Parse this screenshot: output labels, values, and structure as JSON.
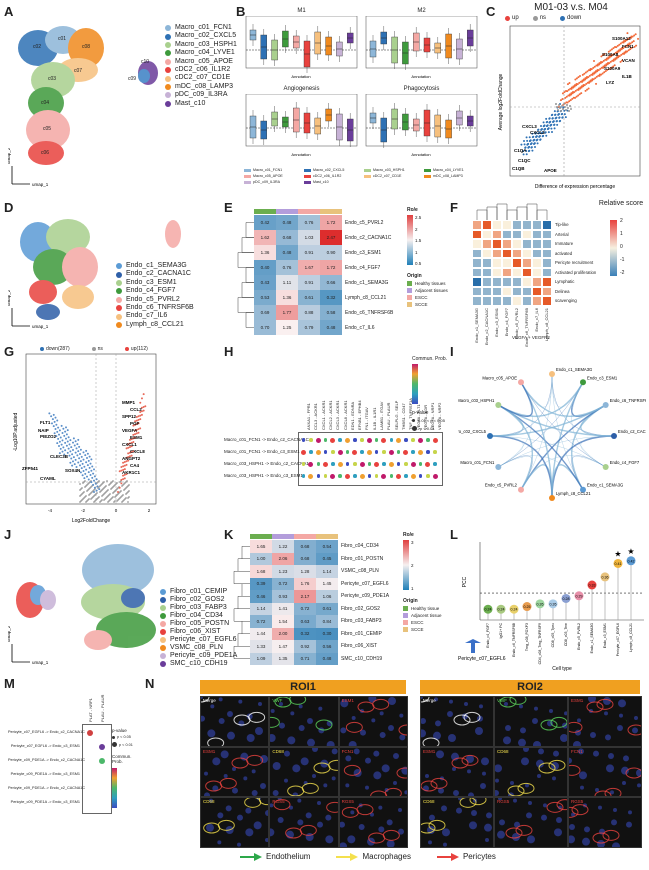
{
  "panels": {
    "A": "A",
    "B": "B",
    "C": "C",
    "D": "D",
    "E": "E",
    "F": "F",
    "G": "G",
    "H": "H",
    "I": "I",
    "J": "J",
    "K": "K",
    "L": "L",
    "M": "M",
    "N": "N"
  },
  "panelA": {
    "legend": [
      {
        "name": "Macro_c01_FCN1",
        "color": "#8DB6D8"
      },
      {
        "name": "Macro_c02_CXCL5",
        "color": "#2E71B4"
      },
      {
        "name": "Macro_c03_HSPH1",
        "color": "#A9D08E"
      },
      {
        "name": "Macro_c04_LYVE1",
        "color": "#3E9A3C"
      },
      {
        "name": "Macro_c05_APOE",
        "color": "#F4A8A4"
      },
      {
        "name": "cDC2_c06_IL1R2",
        "color": "#E8423E"
      },
      {
        "name": "cDC2_c07_CD1E",
        "color": "#F6C07E"
      },
      {
        "name": "mDC_c08_LAMP3",
        "color": "#F08A1E"
      },
      {
        "name": "pDC_c09_IL3RA",
        "color": "#C7B2D6"
      },
      {
        "name": "Mast_c10",
        "color": "#6A3D9A"
      }
    ],
    "axis_x": "umap_1",
    "axis_y": "umap_2",
    "cluster_labels": [
      "c01",
      "c02",
      "c03",
      "c04",
      "c05",
      "c06",
      "c07",
      "c08",
      "c09",
      "c10"
    ]
  },
  "panelB": {
    "titles": [
      "M1",
      "M2",
      "Angiogenesis",
      "Phagocytosis"
    ],
    "xlabel": "Annotation",
    "legend": [
      "Macro_c01_FCN1",
      "Macro_c02_CXCL5",
      "Macro_c03_HSPH1",
      "Macro_c04_LYVE1",
      "Macro_c05_APOE",
      "cDC2_c06_IL1R2",
      "cDC2_c07_CD1E",
      "mDC_c08_LAMP3",
      "pDC_c09_IL3RA",
      "Mast_c10"
    ]
  },
  "panelC": {
    "title": "M01-03 v.s. M04",
    "legend": [
      {
        "name": "up",
        "color": "#E8423E"
      },
      {
        "name": "ns",
        "color": "#999999"
      },
      {
        "name": "down",
        "color": "#2E71B4"
      }
    ],
    "xlabel": "Difference of expression percentage",
    "ylabel": "Average log2FoldChange",
    "genes_up": [
      "S100A12",
      "FCN1",
      "S100A8",
      "VCAN",
      "S100A9",
      "IL1B",
      "LYZ"
    ],
    "genes_down": [
      "CXCL3",
      "CXCL2",
      "C1QA",
      "C1QC",
      "C1QB",
      "APOE"
    ]
  },
  "panelD": {
    "legend": [
      {
        "name": "Endo_c1_SEMA3G",
        "color": "#5B9BD5"
      },
      {
        "name": "Endo_c2_CACNA1C",
        "color": "#2E5FA8"
      },
      {
        "name": "Endo_c3_ESM1",
        "color": "#A9D08E"
      },
      {
        "name": "Endo_c4_FGF7",
        "color": "#3E9A3C"
      },
      {
        "name": "Endo_c5_PVRL2",
        "color": "#F4A8A4"
      },
      {
        "name": "Endo_c6_TNFRSF6B",
        "color": "#E8423E"
      },
      {
        "name": "Endo_c7_IL6",
        "color": "#F6C07E"
      },
      {
        "name": "Lymph_c8_CCL21",
        "color": "#F08A1E"
      }
    ],
    "axis_x": "umap_1",
    "axis_y": "umap_2"
  },
  "panelE": {
    "columns": [
      "Healthy tissues",
      "Adjacent tissues",
      "ESCC",
      "SCCE"
    ],
    "rows": [
      {
        "label": "Endo_c5_PVRL2",
        "values": [
          "0.42",
          "0.48",
          "0.76",
          "1.72"
        ]
      },
      {
        "label": "Endo_c2_CACNA1C",
        "values": [
          "1.62",
          "0.68",
          "1.03",
          "2.47"
        ]
      },
      {
        "label": "Endo_c3_ESM1",
        "values": [
          "1.36",
          "0.48",
          "0.91",
          "0.90"
        ]
      },
      {
        "label": "Endo_c4_FGF7",
        "values": [
          "0.40",
          "0.76",
          "1.67",
          "1.72"
        ]
      },
      {
        "label": "Endo_c1_SEMA3G",
        "values": [
          "0.43",
          "1.11",
          "0.91",
          "0.66"
        ]
      },
      {
        "label": "Lymph_c8_CCL21",
        "values": [
          "0.53",
          "1.36",
          "0.61",
          "0.32"
        ]
      },
      {
        "label": "Endo_c6_TNFRSF6B",
        "values": [
          "0.69",
          "1.77",
          "0.88",
          "0.58"
        ]
      },
      {
        "label": "Endo_c7_IL6",
        "values": [
          "0.70",
          "1.25",
          "0.79",
          "0.48"
        ]
      }
    ],
    "origin_title": "Origin",
    "roe_title": "Ro/e",
    "roe_ticks": [
      "2.5",
      "2",
      "1.5",
      "1",
      "0.5"
    ],
    "origin_legend": [
      {
        "name": "Healthy tissues",
        "color": "#6BAE4F"
      },
      {
        "name": "Adjacent tissues",
        "color": "#B39DDB"
      },
      {
        "name": "ESCC",
        "color": "#F4A8A4"
      },
      {
        "name": "SCCE",
        "color": "#E8C27C"
      }
    ]
  },
  "panelF": {
    "title": "Relative score",
    "ticks": [
      "2",
      "1",
      "0",
      "-1",
      "-2"
    ],
    "rows": [
      "Tip-like",
      "Arterial",
      "Immature",
      "activated",
      "Pericyte recruitment",
      "Activated proliferation",
      "Lymphatic",
      "Delinea",
      "scavenging"
    ],
    "cols": [
      "Endo_c1_SEMA3G",
      "Endo_c2_CACNA1C",
      "Endo_c3_ESM1",
      "Endo_c4_FGF7",
      "Endo_c5_PVRL2",
      "Endo_c6_TNFRSF6B",
      "Endo_c7_IL6",
      "Lymph_c8_CCL21"
    ],
    "footer": "VEGFA + VEGFR2"
  },
  "panelG": {
    "legend": [
      {
        "name": "down(287)",
        "color": "#2E71B4"
      },
      {
        "name": "ns",
        "color": "#999999"
      },
      {
        "name": "up(112)",
        "color": "#E8423E"
      }
    ],
    "xlabel": "Log2FoldChange",
    "ylabel": "-Log10P.adjusted",
    "genes_up": [
      "MMP1",
      "CCL2",
      "SPP12",
      "PGF",
      "VEGFA",
      "ESM1",
      "CXCL1",
      "CXCL8",
      "ANGPT2",
      "CA4",
      "AKR1C1"
    ],
    "genes_down": [
      "FLT1",
      "NAIP",
      "PIEZO2",
      "CLEC3B",
      "ZFP541",
      "CYAML",
      "SOX4N"
    ],
    "xticks": [
      "-4",
      "-2",
      "0",
      "2"
    ]
  },
  "panelH": {
    "rows": [
      "Macro_c01_FCN1 -> Endo_c2_CACNA1C",
      "Macro_c01_FCN1 -> Endo_c3_ESM1",
      "Macro_c03_HSPH1 -> Endo_c2_CACNA1C",
      "Macro_c03_HSPH1 -> Endo_c3_ESM1"
    ],
    "cols": [
      "ANXA1 - FPR1",
      "CCL3 - ACKR1",
      "CXCL1 - ACKR1",
      "CXCL2 - ACKR1",
      "CXCL3 - ACKR1",
      "CXCL8 - ACKR1",
      "EDN1 - EDNRA",
      "EFNB1 - EPHB4",
      "FN1 - ITGAV",
      "IL1B - IL1R1",
      "LAMB1 - ITGAV",
      "PLAU - PLAUR",
      "SELPLG - SELP",
      "THBS1 - CD47",
      "TNF - TNFRSF1A",
      "VEGFA - FLT1",
      "VEGFA - KDR",
      "VEGFA - NRP1",
      "VEGFA - NRP2"
    ],
    "legend_title": "Commun. Prob.",
    "pvalue_title": "p-value",
    "pvalue_items": [
      "0.01 < p < 0.05",
      "p < 0.01"
    ]
  },
  "panelI": {
    "nodes": [
      "Endo_c1_SEMA3G",
      "Endo_c3_ESM1",
      "Endo_c6_TNFRSF6B",
      "Endo_c2_CACNA1C",
      "Endo_c4_FGF7",
      "Endo_c1_SEMA3G",
      "Lymph_c8_CCL21",
      "Endo_c5_PVRL2",
      "Macro_c01_FCN1",
      "Macro_c02_CXCL5",
      "Macro_c03_HSPH1",
      "Macro_c05_APOE"
    ]
  },
  "panelJ": {
    "legend": [
      {
        "name": "Fibro_c01_CEMIP",
        "color": "#5B9BD5"
      },
      {
        "name": "Fibro_c02_GOS2",
        "color": "#2E5FA8"
      },
      {
        "name": "Fibro_c03_FABP3",
        "color": "#A9D08E"
      },
      {
        "name": "Fibro_c04_CD34",
        "color": "#3E9A3C"
      },
      {
        "name": "Fibro_c05_POSTN",
        "color": "#F4A8A4"
      },
      {
        "name": "Fibro_c06_XIST",
        "color": "#E8423E"
      },
      {
        "name": "Pericyte_c07_EGFL6",
        "color": "#F6C07E"
      },
      {
        "name": "VSMC_c08_PLN",
        "color": "#F08A1E"
      },
      {
        "name": "Pericyte_c09_PDE1A",
        "color": "#C7B2D6"
      },
      {
        "name": "SMC_c10_CDH19",
        "color": "#6A3D9A"
      }
    ],
    "axis_x": "umap_1",
    "axis_y": "umap_2"
  },
  "panelK": {
    "rows": [
      {
        "label": "Fibro_c04_CD34",
        "values": [
          "1.65",
          "1.22",
          "0.68",
          "0.54"
        ]
      },
      {
        "label": "Fibro_c01_POSTN",
        "values": [
          "1.00",
          "2.06",
          "0.68",
          "0.45"
        ]
      },
      {
        "label": "VSMC_c08_PLN",
        "values": [
          "1.68",
          "1.23",
          "1.28",
          "1.14"
        ]
      },
      {
        "label": "Pericyte_c07_EGFL6",
        "values": [
          "0.39",
          "0.72",
          "1.76",
          "1.45"
        ]
      },
      {
        "label": "Pericyte_c09_PDE1A",
        "values": [
          "0.46",
          "0.93",
          "2.17",
          "1.06"
        ]
      },
      {
        "label": "Fibro_c02_GOS2",
        "values": [
          "1.14",
          "1.41",
          "0.72",
          "0.61"
        ]
      },
      {
        "label": "Fibro_c03_FABP3",
        "values": [
          "0.72",
          "1.54",
          "0.63",
          "0.84"
        ]
      },
      {
        "label": "Fibro_c01_CEMIP",
        "values": [
          "1.44",
          "2.00",
          "0.32",
          "0.30"
        ]
      },
      {
        "label": "Fibro_c06_XIST",
        "values": [
          "1.33",
          "1.47",
          "0.92",
          "0.56"
        ]
      },
      {
        "label": "SMC_c10_CDH19",
        "values": [
          "1.09",
          "1.35",
          "0.71",
          "0.48"
        ]
      }
    ],
    "origin_title": "Origin",
    "roe_title": "Ro/e",
    "roe_ticks": [
      "3",
      "2",
      "1"
    ],
    "origin_legend": [
      {
        "name": "Healthy tissue",
        "color": "#6BAE4F"
      },
      {
        "name": "Adjacent tissue",
        "color": "#B39DDB"
      },
      {
        "name": "ESCC",
        "color": "#F4A8A4"
      },
      {
        "name": "SCCE",
        "color": "#E8C27C"
      }
    ]
  },
  "panelL": {
    "ylabel": "PCC",
    "xlabel": "Cell type",
    "arrow_label": "Pericyte_c07_EGFL6",
    "categories": [
      "Endo_c4_FGF7",
      "IgG1+ PC",
      "Endo_c6_TNFRSF6B",
      "Treg_c08_FOXP3",
      "CD4_c08_Treg_TNFRSF9",
      "CD8_c05_Tpex",
      "CD8_c03_Tem",
      "Endo_c5_PVRL2",
      "Endo_c1_SEMA3G",
      "Endo_c3_ESM1",
      "Pericyte_c07_EGFL6",
      "Lymph_c8_CCL21"
    ],
    "values": [
      0.24,
      0.24,
      0.24,
      0.25,
      0.26,
      0.26,
      0.28,
      0.29,
      0.33,
      0.36,
      0.41,
      0.42
    ],
    "labels": [
      "0.24",
      "0.24",
      "0.24",
      "0.25",
      "0.26",
      "0.26",
      "0.28",
      "0.29",
      "0.33",
      "0.36",
      "0.41",
      "0.42"
    ],
    "colors": [
      "#6BAE4F",
      "#A8C97F",
      "#E8D06A",
      "#E89C4E",
      "#9ED6A0",
      "#A9CBE7",
      "#8A9FD1",
      "#E78FA9",
      "#E8423E",
      "#E8C27C",
      "#F0B53C",
      "#5B9BD5"
    ],
    "stars": [
      "★",
      "★"
    ]
  },
  "panelM": {
    "cols": [
      "PLAT - NRP1",
      "PLAU - PLAUR"
    ],
    "rows": [
      "Pericyte_c07_EGFL6 -> Endo_c2_CACNA1C",
      "Pericyte_c07_EGFL6 -> Endo_c3_ESM1",
      "Pericyte_c09_PDE1A -> Endo_c2_CACNA1C",
      "Pericyte_c09_PDE1A -> Endo_c3_ESM1",
      "Pericyte_c09_PDE1A -> Endo_c2_CACNA1C",
      "Pericyte_c09_PDE1A -> Endo_c3_ESM1"
    ],
    "pvalue_title": "p-value",
    "pvalue_items": [
      "p < 0.05",
      "p < 0.01"
    ],
    "legend_title": "Commun. Prob."
  },
  "panelN": {
    "roi1": "ROI1",
    "roi2": "ROI2",
    "roi1_tiles": [
      {
        "label": "Merge",
        "color": "#ffffff"
      },
      {
        "label": "VWF",
        "color": "#5CD65C"
      },
      {
        "label": "ESM1",
        "color": "#E8423E"
      },
      {
        "label": "ESM1",
        "color": "#E8423E"
      },
      {
        "label": "CD68",
        "color": "#F4E04D"
      },
      {
        "label": "FCN1",
        "color": "#E8423E"
      },
      {
        "label": "CD68",
        "color": "#F4E04D"
      },
      {
        "label": "RGS5",
        "color": "#E8423E"
      },
      {
        "label": "RGS5",
        "color": "#E8423E"
      }
    ],
    "roi2_tiles": [
      {
        "label": "Merge",
        "color": "#ffffff"
      },
      {
        "label": "VWF",
        "color": "#5CD65C"
      },
      {
        "label": "ESM1",
        "color": "#E8423E"
      },
      {
        "label": "ESM1",
        "color": "#E8423E"
      },
      {
        "label": "CD68",
        "color": "#F4E04D"
      },
      {
        "label": "FCN1",
        "color": "#E8423E"
      },
      {
        "label": "CD68",
        "color": "#F4E04D"
      },
      {
        "label": "RGS5",
        "color": "#E8423E"
      },
      {
        "label": "RGS5",
        "color": "#E8423E"
      }
    ],
    "legend": [
      {
        "name": "Endothelium",
        "color": "#2DA84A"
      },
      {
        "name": "Macrophages",
        "color": "#F4E04D"
      },
      {
        "name": "Pericytes",
        "color": "#E8423E"
      }
    ]
  }
}
